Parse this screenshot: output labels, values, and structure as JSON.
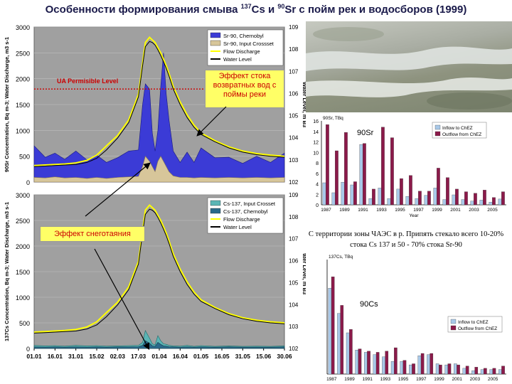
{
  "title": {
    "pre": "Особенности формирования смыва ",
    "iso1": "137",
    "mid1": "Cs и ",
    "iso2": "90",
    "post": "Sr с пойм рек и водосборов (1999)"
  },
  "annotations": {
    "snowmelt": "Эффект снеготаяния",
    "backwater": "Эффект стока возвратных вод с поймы реки",
    "zone_note": "С территории зоны ЧАЭС в р. Припять стекало всего 10-20% стока Cs 137 и 50 - 70% стока Sr-90",
    "sr_label": "90Sr",
    "cs_label": "90Cs",
    "permissible": "UA Permisible Level"
  },
  "colors": {
    "chernobyl_fill": "#3b3bd6",
    "crosset_fill": "#d7c69a",
    "flow": "#ffff00",
    "water": "#000000",
    "inflow": "#a8c8e8",
    "outflow": "#8b1a4a",
    "cs_input": "#5bb5b5",
    "cs_chern": "#2a6a8a",
    "permissible": "#cc0000"
  },
  "chart_data": [
    {
      "type": "area",
      "panel": "sr90-upper",
      "ylabel": "90Sr Concentration, Bq m-3; Water Discharge, m3 s-1",
      "y2label": "Water Level, m B3",
      "x_ticks": [
        "01.01",
        "16.01",
        "31.01",
        "15.02",
        "02.03",
        "17.03",
        "01.04",
        "16.04",
        "01.05",
        "16.05",
        "31.05",
        "15.06",
        "30.06"
      ],
      "ylim": [
        0,
        3000
      ],
      "y_ticks": [
        "0",
        "500",
        "1000",
        "1500",
        "2000",
        "2500",
        "3000"
      ],
      "y2_ticks": [
        "102",
        "103",
        "104",
        "105",
        "106",
        "107",
        "108",
        "109"
      ],
      "legend": [
        "Sr-90, Chernobyl",
        "Sr-90, Input Crossset",
        "Flow Discharge",
        "Water Level"
      ],
      "permissible_level": 1800,
      "x": [
        0,
        8,
        15,
        22,
        30,
        38,
        45,
        52,
        60,
        68,
        75,
        78,
        80,
        83,
        85,
        87,
        89,
        91,
        93,
        95,
        97,
        100,
        105,
        110,
        115,
        120,
        130,
        140,
        150,
        160,
        170,
        180
      ],
      "series": [
        {
          "name": "Sr-90, Chernobyl",
          "values": [
            700,
            480,
            560,
            440,
            600,
            430,
            520,
            380,
            470,
            600,
            620,
            1500,
            1900,
            1800,
            950,
            600,
            1000,
            1850,
            2500,
            1700,
            1200,
            600,
            380,
            580,
            380,
            660,
            470,
            480,
            360,
            500,
            380,
            560
          ]
        },
        {
          "name": "Sr-90, Input Crossset",
          "values": [
            90,
            80,
            100,
            80,
            90,
            70,
            90,
            70,
            90,
            100,
            110,
            300,
            500,
            400,
            300,
            200,
            400,
            500,
            400,
            300,
            200,
            120,
            90,
            90,
            80,
            90,
            80,
            90,
            80,
            90,
            80,
            90
          ]
        },
        {
          "name": "Flow Discharge",
          "values": [
            320,
            330,
            340,
            350,
            370,
            420,
            520,
            700,
            900,
            1200,
            1700,
            2300,
            2700,
            2800,
            2750,
            2700,
            2600,
            2500,
            2380,
            2250,
            2100,
            1850,
            1550,
            1300,
            1100,
            950,
            800,
            680,
            600,
            550,
            520,
            500
          ]
        },
        {
          "name": "Water Level",
          "values": [
            300,
            310,
            320,
            330,
            340,
            380,
            460,
            620,
            850,
            1150,
            1650,
            2250,
            2620,
            2720,
            2700,
            2650,
            2560,
            2450,
            2330,
            2200,
            2050,
            1800,
            1500,
            1250,
            1060,
            920,
            780,
            660,
            580,
            530,
            500,
            480
          ]
        }
      ]
    },
    {
      "type": "area",
      "panel": "cs137-lower",
      "ylabel": "137Cs Concentration, Bq m-3; Water Discharge, m3 s-1",
      "y2label": "Water Level, m B3",
      "x_ticks": [
        "01.01",
        "16.01",
        "31.01",
        "15.02",
        "02.03",
        "17.03",
        "01.04",
        "16.04",
        "01.05",
        "16.05",
        "31.05",
        "15.06",
        "30.06"
      ],
      "ylim": [
        0,
        3000
      ],
      "y_ticks": [
        "0",
        "500",
        "1000",
        "1500",
        "2000",
        "2500",
        "3000"
      ],
      "y2_ticks": [
        "102",
        "103",
        "104",
        "105",
        "106",
        "107",
        "108",
        "109"
      ],
      "legend": [
        "Cs-137, Input Crosset",
        "Cs-137, Chernobyl",
        "Flow Discharge",
        "Water Level"
      ],
      "x": [
        0,
        8,
        15,
        22,
        30,
        38,
        45,
        52,
        60,
        68,
        75,
        78,
        80,
        83,
        85,
        87,
        89,
        91,
        93,
        95,
        97,
        100,
        105,
        110,
        115,
        120,
        130,
        140,
        150,
        160,
        170,
        180
      ],
      "series": [
        {
          "name": "Cs-137, Input Crosset",
          "values": [
            60,
            50,
            55,
            45,
            60,
            50,
            55,
            45,
            50,
            55,
            60,
            120,
            350,
            200,
            90,
            70,
            250,
            150,
            90,
            80,
            60,
            50,
            45,
            60,
            40,
            55,
            40,
            50,
            40,
            45,
            40,
            50
          ]
        },
        {
          "name": "Cs-137, Chernobyl",
          "values": [
            30,
            25,
            30,
            25,
            30,
            25,
            30,
            25,
            30,
            30,
            35,
            60,
            150,
            100,
            50,
            40,
            120,
            80,
            50,
            45,
            35,
            30,
            25,
            30,
            25,
            30,
            25,
            30,
            25,
            25,
            25,
            30
          ]
        },
        {
          "name": "Flow Discharge",
          "values": [
            320,
            330,
            340,
            350,
            370,
            420,
            520,
            700,
            900,
            1200,
            1700,
            2300,
            2700,
            2800,
            2750,
            2700,
            2600,
            2500,
            2380,
            2250,
            2100,
            1850,
            1550,
            1300,
            1100,
            950,
            800,
            680,
            600,
            550,
            520,
            500
          ]
        },
        {
          "name": "Water Level",
          "values": [
            300,
            310,
            320,
            330,
            340,
            380,
            460,
            620,
            850,
            1150,
            1650,
            2250,
            2620,
            2720,
            2700,
            2650,
            2560,
            2450,
            2330,
            2200,
            2050,
            1800,
            1500,
            1250,
            1060,
            920,
            780,
            660,
            580,
            530,
            500,
            480
          ]
        }
      ]
    },
    {
      "type": "bar",
      "panel": "sr90-bars",
      "ylabel": "90Sr, TBq",
      "xlabel": "Year",
      "ylim": [
        0,
        16
      ],
      "y_ticks": [
        "0",
        "2",
        "4",
        "6",
        "8",
        "10",
        "12",
        "14",
        "16"
      ],
      "x_tick_labels": [
        "1987",
        "1989",
        "1991",
        "1993",
        "1995",
        "1997",
        "1999",
        "2001",
        "2003",
        "2005"
      ],
      "legend": [
        "Inflow to ChEZ",
        "Outflow from ChEZ"
      ],
      "categories": [
        "1987",
        "1988",
        "1989",
        "1990",
        "1991",
        "1992",
        "1993",
        "1994",
        "1995",
        "1996",
        "1997",
        "1998",
        "1999",
        "2000",
        "2001",
        "2002",
        "2003",
        "2004",
        "2005",
        "2006"
      ],
      "series": [
        {
          "name": "Inflow to ChEZ",
          "values": [
            4.2,
            2.3,
            4.3,
            3.8,
            11.5,
            1.2,
            3.2,
            1.2,
            3.0,
            1.6,
            1.2,
            1.8,
            3.2,
            1.0,
            1.9,
            1.0,
            0.7,
            0.9,
            0.5,
            1.1
          ]
        },
        {
          "name": "Outflow from ChEZ",
          "values": [
            15.3,
            10.3,
            13.8,
            4.4,
            11.7,
            3.0,
            14.8,
            12.8,
            5.0,
            5.6,
            2.6,
            2.6,
            7.0,
            5.2,
            3.0,
            2.5,
            2.2,
            2.8,
            1.4,
            2.5
          ]
        }
      ]
    },
    {
      "type": "bar",
      "panel": "cs137-bars",
      "ylabel": "137Cs, TBq",
      "ylim": [
        0,
        10
      ],
      "x_tick_labels": [
        "1987",
        "1989",
        "1991",
        "1993",
        "1995",
        "1997",
        "1999",
        "2001",
        "2003",
        "2005"
      ],
      "legend": [
        "Inflow to ChEZ",
        "Outflow from ChEZ"
      ],
      "categories": [
        "1987",
        "1988",
        "1989",
        "1990",
        "1991",
        "1992",
        "1993",
        "1994",
        "1995",
        "1996",
        "1997",
        "1998",
        "1999",
        "2000",
        "2001",
        "2002",
        "2003",
        "2004",
        "2005",
        "2006"
      ],
      "series": [
        {
          "name": "Inflow to ChEZ",
          "values": [
            7.5,
            5.3,
            3.6,
            2.1,
            1.9,
            1.7,
            1.5,
            1.1,
            1.1,
            0.8,
            1.6,
            1.7,
            0.9,
            0.8,
            0.9,
            0.5,
            0.3,
            0.4,
            0.4,
            0.4
          ]
        },
        {
          "name": "Outflow from ChEZ",
          "values": [
            8.5,
            6.0,
            3.9,
            2.2,
            2.0,
            1.9,
            2.0,
            2.3,
            1.2,
            0.9,
            1.8,
            1.8,
            0.8,
            0.9,
            0.8,
            0.7,
            0.6,
            0.5,
            0.5,
            0.7
          ]
        }
      ]
    }
  ]
}
